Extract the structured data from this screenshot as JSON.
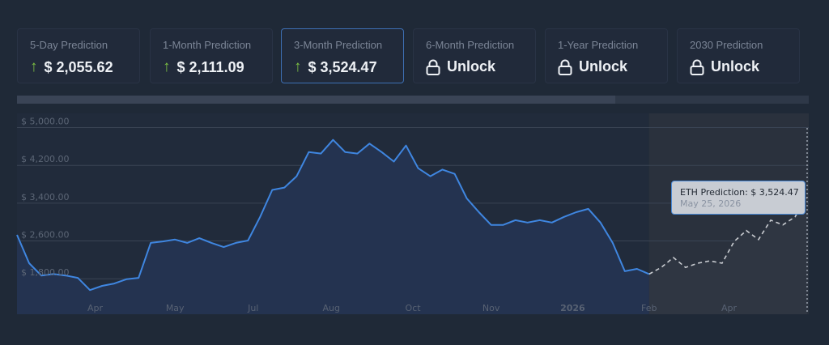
{
  "cards": [
    {
      "label": "5-Day Prediction",
      "value": "$ 2,055.62",
      "icon": "arrow-up-icon",
      "active": false
    },
    {
      "label": "1-Month Prediction",
      "value": "$ 2,111.09",
      "icon": "arrow-up-icon",
      "active": false
    },
    {
      "label": "3-Month Prediction",
      "value": "$ 3,524.47",
      "icon": "arrow-up-icon",
      "active": true
    },
    {
      "label": "6-Month Prediction",
      "value": "Unlock",
      "icon": "lock-icon",
      "active": false
    },
    {
      "label": "1-Year Prediction",
      "value": "Unlock",
      "icon": "lock-icon",
      "active": false
    },
    {
      "label": "2030 Prediction",
      "value": "Unlock",
      "icon": "lock-icon",
      "active": false
    }
  ],
  "arrow_glyph": "↑",
  "colors": {
    "up": "#7cc043",
    "history_line": "#3f86e0",
    "forecast_line": "#c9ccd1",
    "accent_border": "#3d6fb3"
  },
  "tooltip": {
    "label": "ETH Prediction:",
    "value": "$ 3,524.47",
    "date": "May 25, 2026"
  },
  "chart_data": {
    "type": "line",
    "ylim": [
      1050,
      5300
    ],
    "grid": true,
    "y_ticks": [
      {
        "value": 5000,
        "label": "$ 5,000.00"
      },
      {
        "value": 4200,
        "label": "$ 4,200.00"
      },
      {
        "value": 3400,
        "label": "$ 3,400.00"
      },
      {
        "value": 2600,
        "label": "$ 2,600.00"
      },
      {
        "value": 1800,
        "label": "$ 1,800.00"
      }
    ],
    "x_ticks": [
      {
        "date": "2025-04-10",
        "label": "Apr",
        "bold": false
      },
      {
        "date": "2025-05-26",
        "label": "May",
        "bold": false
      },
      {
        "date": "2025-07-10",
        "label": "Jul",
        "bold": false
      },
      {
        "date": "2025-08-24",
        "label": "Aug",
        "bold": false
      },
      {
        "date": "2025-10-10",
        "label": "Oct",
        "bold": false
      },
      {
        "date": "2025-11-24",
        "label": "Nov",
        "bold": false
      },
      {
        "date": "2026-01-10",
        "label": "2026",
        "bold": true
      },
      {
        "date": "2026-02-23",
        "label": "Feb",
        "bold": false
      },
      {
        "date": "2026-04-10",
        "label": "Apr",
        "bold": false
      }
    ],
    "series": [
      {
        "kind": "history",
        "style": "solid",
        "points": [
          [
            "2025-02-24",
            2730
          ],
          [
            "2025-03-03",
            2130
          ],
          [
            "2025-03-10",
            1870
          ],
          [
            "2025-03-17",
            1900
          ],
          [
            "2025-03-24",
            1870
          ],
          [
            "2025-03-31",
            1820
          ],
          [
            "2025-04-07",
            1560
          ],
          [
            "2025-04-14",
            1650
          ],
          [
            "2025-04-21",
            1700
          ],
          [
            "2025-04-28",
            1790
          ],
          [
            "2025-05-05",
            1820
          ],
          [
            "2025-05-12",
            2560
          ],
          [
            "2025-05-19",
            2590
          ],
          [
            "2025-05-26",
            2630
          ],
          [
            "2025-06-02",
            2560
          ],
          [
            "2025-06-09",
            2660
          ],
          [
            "2025-06-16",
            2560
          ],
          [
            "2025-06-23",
            2470
          ],
          [
            "2025-06-30",
            2560
          ],
          [
            "2025-07-07",
            2610
          ],
          [
            "2025-07-14",
            3110
          ],
          [
            "2025-07-21",
            3680
          ],
          [
            "2025-07-28",
            3730
          ],
          [
            "2025-08-04",
            3970
          ],
          [
            "2025-08-11",
            4480
          ],
          [
            "2025-08-18",
            4450
          ],
          [
            "2025-08-25",
            4740
          ],
          [
            "2025-09-01",
            4480
          ],
          [
            "2025-09-08",
            4450
          ],
          [
            "2025-09-15",
            4660
          ],
          [
            "2025-09-22",
            4480
          ],
          [
            "2025-09-29",
            4280
          ],
          [
            "2025-10-06",
            4620
          ],
          [
            "2025-10-13",
            4140
          ],
          [
            "2025-10-20",
            3970
          ],
          [
            "2025-10-27",
            4110
          ],
          [
            "2025-11-03",
            4020
          ],
          [
            "2025-11-10",
            3500
          ],
          [
            "2025-11-17",
            3210
          ],
          [
            "2025-11-24",
            2940
          ],
          [
            "2025-12-01",
            2940
          ],
          [
            "2025-12-08",
            3040
          ],
          [
            "2025-12-15",
            2990
          ],
          [
            "2025-12-22",
            3040
          ],
          [
            "2025-12-29",
            2990
          ],
          [
            "2026-01-05",
            3110
          ],
          [
            "2026-01-12",
            3210
          ],
          [
            "2026-01-19",
            3280
          ],
          [
            "2026-01-26",
            2990
          ],
          [
            "2026-02-02",
            2560
          ],
          [
            "2026-02-09",
            1960
          ],
          [
            "2026-02-16",
            2010
          ],
          [
            "2026-02-23",
            1900
          ]
        ]
      },
      {
        "kind": "forecast",
        "style": "dashed",
        "points": [
          [
            "2026-02-23",
            1900
          ],
          [
            "2026-03-02",
            2040
          ],
          [
            "2026-03-09",
            2250
          ],
          [
            "2026-03-16",
            2040
          ],
          [
            "2026-03-23",
            2130
          ],
          [
            "2026-03-30",
            2180
          ],
          [
            "2026-04-06",
            2130
          ],
          [
            "2026-04-13",
            2590
          ],
          [
            "2026-04-20",
            2820
          ],
          [
            "2026-04-27",
            2630
          ],
          [
            "2026-05-04",
            3040
          ],
          [
            "2026-05-11",
            2940
          ],
          [
            "2026-05-18",
            3110
          ],
          [
            "2026-05-25",
            3524.47
          ]
        ]
      }
    ]
  }
}
